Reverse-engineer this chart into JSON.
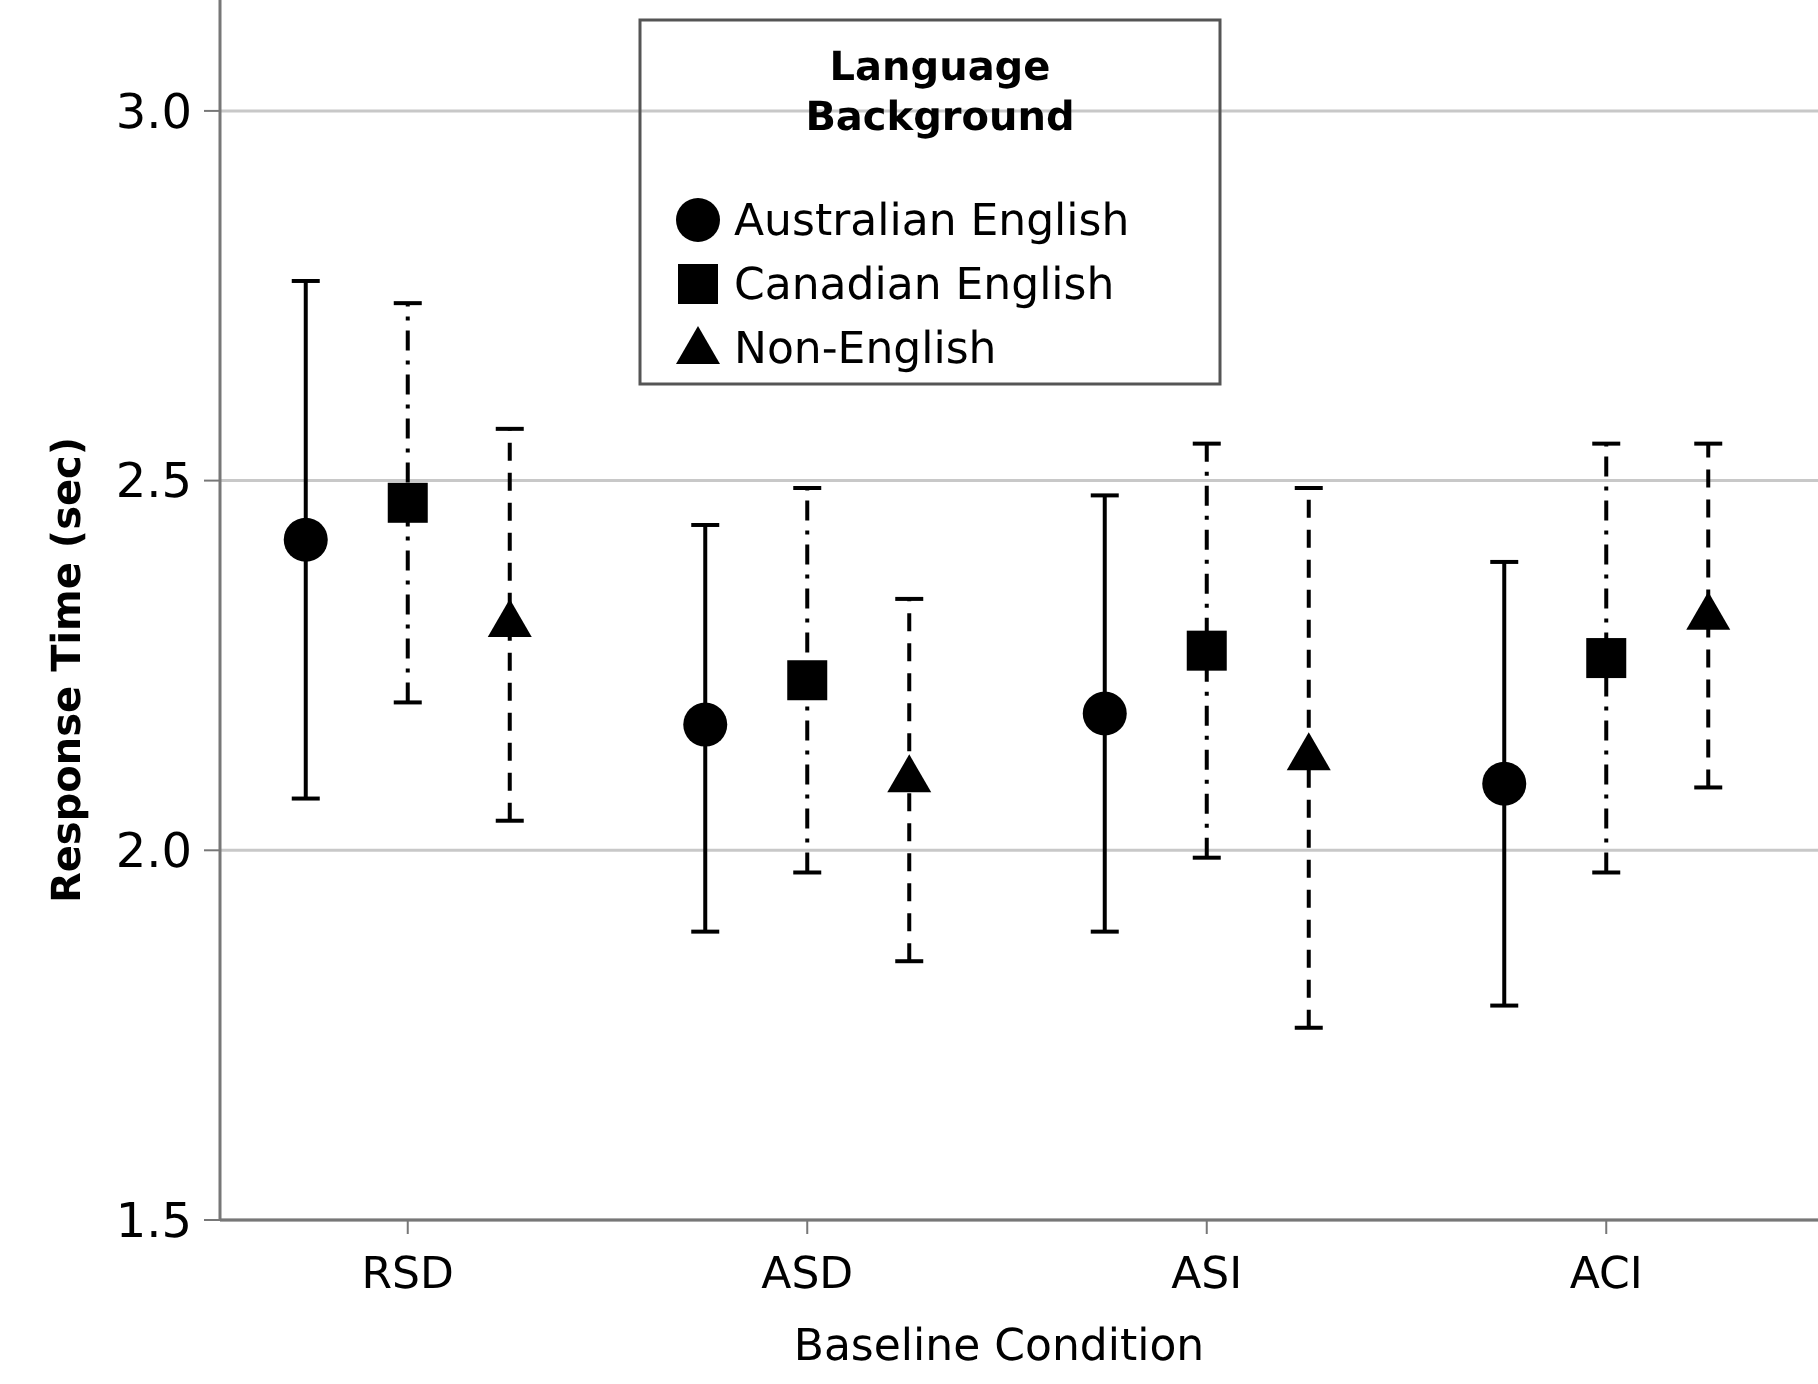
{
  "chart_data": {
    "type": "scatter",
    "xlabel": "Baseline Condition",
    "ylabel": "Response Time (sec)",
    "legend_title": "Language Background",
    "categories": [
      "RSD",
      "ASD",
      "ASI",
      "ACI"
    ],
    "series": [
      {
        "name": "Australian English",
        "color": "#000000",
        "marker": "circle",
        "line_style": "solid",
        "values": [
          2.42,
          2.17,
          2.185,
          2.09
        ],
        "errors": [
          [
            2.07,
            2.77
          ],
          [
            1.89,
            2.44
          ],
          [
            1.89,
            2.48
          ],
          [
            1.79,
            2.39
          ]
        ]
      },
      {
        "name": "Canadian English",
        "color": "#000000",
        "marker": "square",
        "line_style": "dashdot",
        "values": [
          2.47,
          2.23,
          2.27,
          2.26
        ],
        "errors": [
          [
            2.2,
            2.74
          ],
          [
            1.97,
            2.49
          ],
          [
            1.99,
            2.55
          ],
          [
            1.97,
            2.55
          ]
        ]
      },
      {
        "name": "Non-English",
        "color": "#000000",
        "marker": "triangle",
        "line_style": "dashed",
        "values": [
          2.31,
          2.1,
          2.13,
          2.32
        ],
        "errors": [
          [
            2.04,
            2.57
          ],
          [
            1.85,
            2.34
          ],
          [
            1.76,
            2.49
          ],
          [
            2.085,
            2.55
          ]
        ]
      }
    ],
    "ylim": [
      1.5,
      3.15
    ],
    "yticks": [
      {
        "value": 1.5,
        "label": "1.5"
      },
      {
        "value": 2,
        "label": "2.0"
      },
      {
        "value": 2.5,
        "label": "2.5"
      },
      {
        "value": 3,
        "label": "3.0"
      }
    ],
    "grid": "y",
    "legend": "top"
  }
}
